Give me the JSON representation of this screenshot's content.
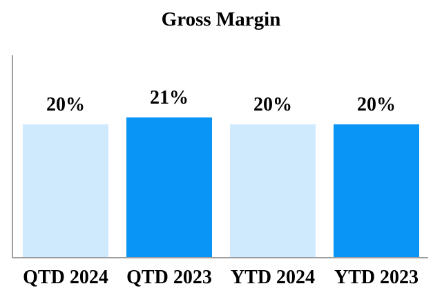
{
  "chart_data": {
    "type": "bar",
    "title": "Gross Margin",
    "categories": [
      "QTD 2024",
      "QTD 2023",
      "YTD 2024",
      "YTD 2023"
    ],
    "values": [
      20,
      21,
      20,
      20
    ],
    "value_labels": [
      "20%",
      "21%",
      "20%",
      "20%"
    ],
    "series_colors": [
      "#cfeafc",
      "#0995f6",
      "#cfeafc",
      "#0995f6"
    ],
    "color_legend": {
      "light_blue": "#cfeafc",
      "bright_blue": "#0995f6"
    },
    "axis_color": "#9e9e9e",
    "text_color": "#000000",
    "xlabel": "",
    "ylabel": "",
    "ylim": [
      0,
      30
    ],
    "grid": false,
    "legend_position": "none",
    "unit": "%"
  }
}
